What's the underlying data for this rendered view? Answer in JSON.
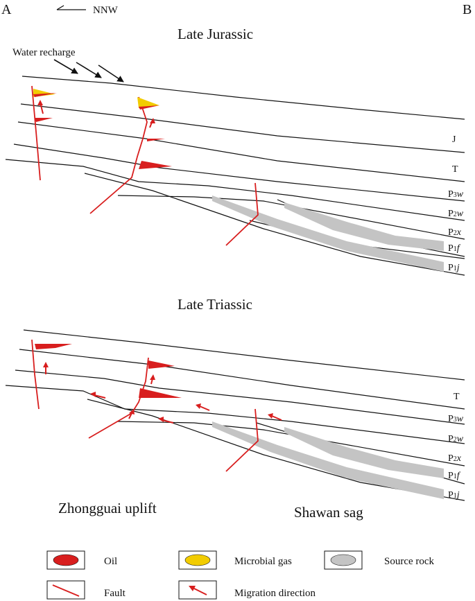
{
  "corners": {
    "left": "A",
    "right": "B"
  },
  "orientation": "NNW",
  "panels": {
    "top": {
      "title": "Late Jurassic",
      "annotation": "Water recharge",
      "layers": [
        {
          "base": "J",
          "sub": "",
          "italic": ""
        },
        {
          "base": "T",
          "sub": "",
          "italic": ""
        },
        {
          "base": "P",
          "sub": "3",
          "italic": "w"
        },
        {
          "base": "P",
          "sub": "2",
          "italic": "w"
        },
        {
          "base": "P",
          "sub": "2",
          "italic": "x"
        },
        {
          "base": "P",
          "sub": "1",
          "italic": "f"
        },
        {
          "base": "P",
          "sub": "1",
          "italic": "j"
        }
      ]
    },
    "bottom": {
      "title": "Late Triassic",
      "layers": [
        {
          "base": "T",
          "sub": "",
          "italic": ""
        },
        {
          "base": "P",
          "sub": "3",
          "italic": "w"
        },
        {
          "base": "P",
          "sub": "2",
          "italic": "w"
        },
        {
          "base": "P",
          "sub": "2",
          "italic": "x"
        },
        {
          "base": "P",
          "sub": "1",
          "italic": "f"
        },
        {
          "base": "P",
          "sub": "1",
          "italic": "j"
        }
      ],
      "regions": {
        "left": "Zhongguai uplift",
        "right": "Shawan sag"
      }
    }
  },
  "legend": {
    "oil": "Oil",
    "gas": "Microbial gas",
    "source": "Source rock",
    "fault": "Fault",
    "migration": "Migration direction"
  },
  "colors": {
    "oil": "#d81e1e",
    "gas": "#f2cc00",
    "source": "#c4c4c4",
    "fault": "#d81e1e",
    "line": "#111111"
  }
}
